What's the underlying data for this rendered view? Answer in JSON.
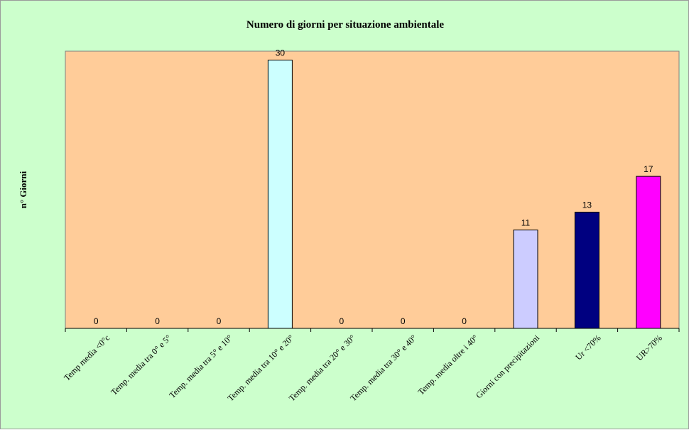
{
  "chart_data": {
    "type": "bar",
    "title": "Numero di giorni per situazione ambientale",
    "ylabel": "n° Giorni",
    "xlabel": "",
    "categories": [
      "Temp media <0°c",
      "Temp. media tra 0° e 5°",
      "Temp. media tra 5° e 10°",
      "Temp. media tra 10° e 20°",
      "Temp. media tra 20° e 30°",
      "Temp. media tra 30° e 40°",
      "Temp. media oltre i 40°",
      "Giorni con precipitazioni",
      "Ur <70%",
      "UR>70%"
    ],
    "values": [
      0,
      0,
      0,
      30,
      0,
      0,
      0,
      11,
      13,
      17
    ],
    "ylim": [
      0,
      31
    ],
    "bar_colors": [
      "#ccffff",
      "#ccffff",
      "#ccffff",
      "#ccffff",
      "#ccffff",
      "#ccffff",
      "#ccffff",
      "#ccccff",
      "#000080",
      "#ff00ff"
    ],
    "plot_background": "#ffcc99",
    "chart_background": "#ccffcc",
    "grid": false,
    "legend": "none",
    "data_labels": true
  }
}
